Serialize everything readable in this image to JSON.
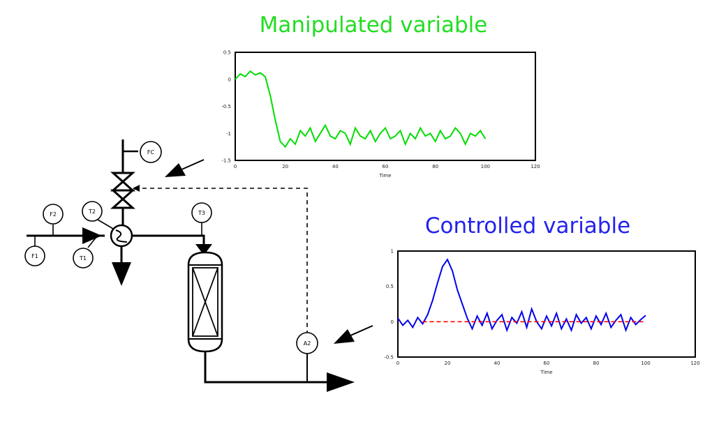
{
  "chart_data": [
    {
      "type": "line",
      "title": "Manipulated variable",
      "xlabel": "Time",
      "ylabel": "",
      "xlim": [
        0,
        120
      ],
      "ylim": [
        -1.5,
        0.5
      ],
      "xticks": [
        "0",
        "20",
        "40",
        "60",
        "80",
        "100",
        "120"
      ],
      "yticks": [
        "0.5",
        "0",
        "-0.5",
        "-1",
        "-1.5"
      ],
      "series": [
        {
          "color": "#00dd00",
          "x": [
            0,
            2,
            4,
            6,
            8,
            10,
            12,
            14,
            16,
            18,
            20,
            22,
            24,
            26,
            28,
            30,
            32,
            34,
            36,
            38,
            40,
            42,
            44,
            46,
            48,
            50,
            52,
            54,
            56,
            58,
            60,
            62,
            64,
            66,
            68,
            70,
            72,
            74,
            76,
            78,
            80,
            82,
            84,
            86,
            88,
            90,
            92,
            94,
            96,
            98,
            100
          ],
          "y": [
            0.0,
            0.1,
            0.05,
            0.15,
            0.08,
            0.12,
            0.05,
            -0.3,
            -0.75,
            -1.15,
            -1.25,
            -1.1,
            -1.2,
            -0.95,
            -1.05,
            -0.9,
            -1.15,
            -1.0,
            -0.85,
            -1.05,
            -1.1,
            -0.95,
            -1.0,
            -1.2,
            -0.9,
            -1.05,
            -1.1,
            -0.95,
            -1.15,
            -1.0,
            -0.9,
            -1.1,
            -1.05,
            -0.95,
            -1.2,
            -1.0,
            -1.1,
            -0.9,
            -1.05,
            -1.0,
            -1.15,
            -0.95,
            -1.1,
            -1.05,
            -0.9,
            -1.0,
            -1.2,
            -1.0,
            -1.05,
            -0.95,
            -1.1
          ]
        }
      ]
    },
    {
      "type": "line",
      "title": "Controlled variable",
      "xlabel": "Time",
      "ylabel": "",
      "xlim": [
        0,
        120
      ],
      "ylim": [
        -0.5,
        1
      ],
      "xticks": [
        "0",
        "20",
        "40",
        "60",
        "80",
        "100",
        "120"
      ],
      "yticks": [
        "1",
        "0.5",
        "0",
        "-0.5"
      ],
      "series": [
        {
          "color": "#0000ee",
          "x": [
            0,
            2,
            4,
            6,
            8,
            10,
            12,
            14,
            16,
            18,
            20,
            22,
            24,
            26,
            28,
            30,
            32,
            34,
            36,
            38,
            40,
            42,
            44,
            46,
            48,
            50,
            52,
            54,
            56,
            58,
            60,
            62,
            64,
            66,
            68,
            70,
            72,
            74,
            76,
            78,
            80,
            82,
            84,
            86,
            88,
            90,
            92,
            94,
            96,
            98,
            100
          ],
          "y": [
            0.05,
            -0.05,
            0.02,
            -0.08,
            0.06,
            -0.03,
            0.1,
            0.3,
            0.55,
            0.78,
            0.88,
            0.72,
            0.45,
            0.25,
            0.05,
            -0.1,
            0.08,
            -0.05,
            0.12,
            -0.1,
            0.02,
            0.1,
            -0.12,
            0.06,
            -0.02,
            0.14,
            -0.08,
            0.18,
            0.0,
            -0.1,
            0.08,
            -0.06,
            0.12,
            -0.1,
            0.04,
            -0.12,
            0.1,
            -0.02,
            0.06,
            -0.1,
            0.08,
            -0.04,
            0.12,
            -0.08,
            0.02,
            0.1,
            -0.12,
            0.06,
            -0.04,
            0.03,
            0.09
          ]
        },
        {
          "color": "#ff0000",
          "dashed": true,
          "x": [
            10,
            100
          ],
          "y": [
            0,
            0
          ]
        }
      ]
    }
  ],
  "diagram": {
    "tags": {
      "fc": "FC",
      "f2": "F2",
      "t2": "T2",
      "t3": "T3",
      "f1": "F1",
      "t1": "T1",
      "a2": "A2"
    }
  }
}
